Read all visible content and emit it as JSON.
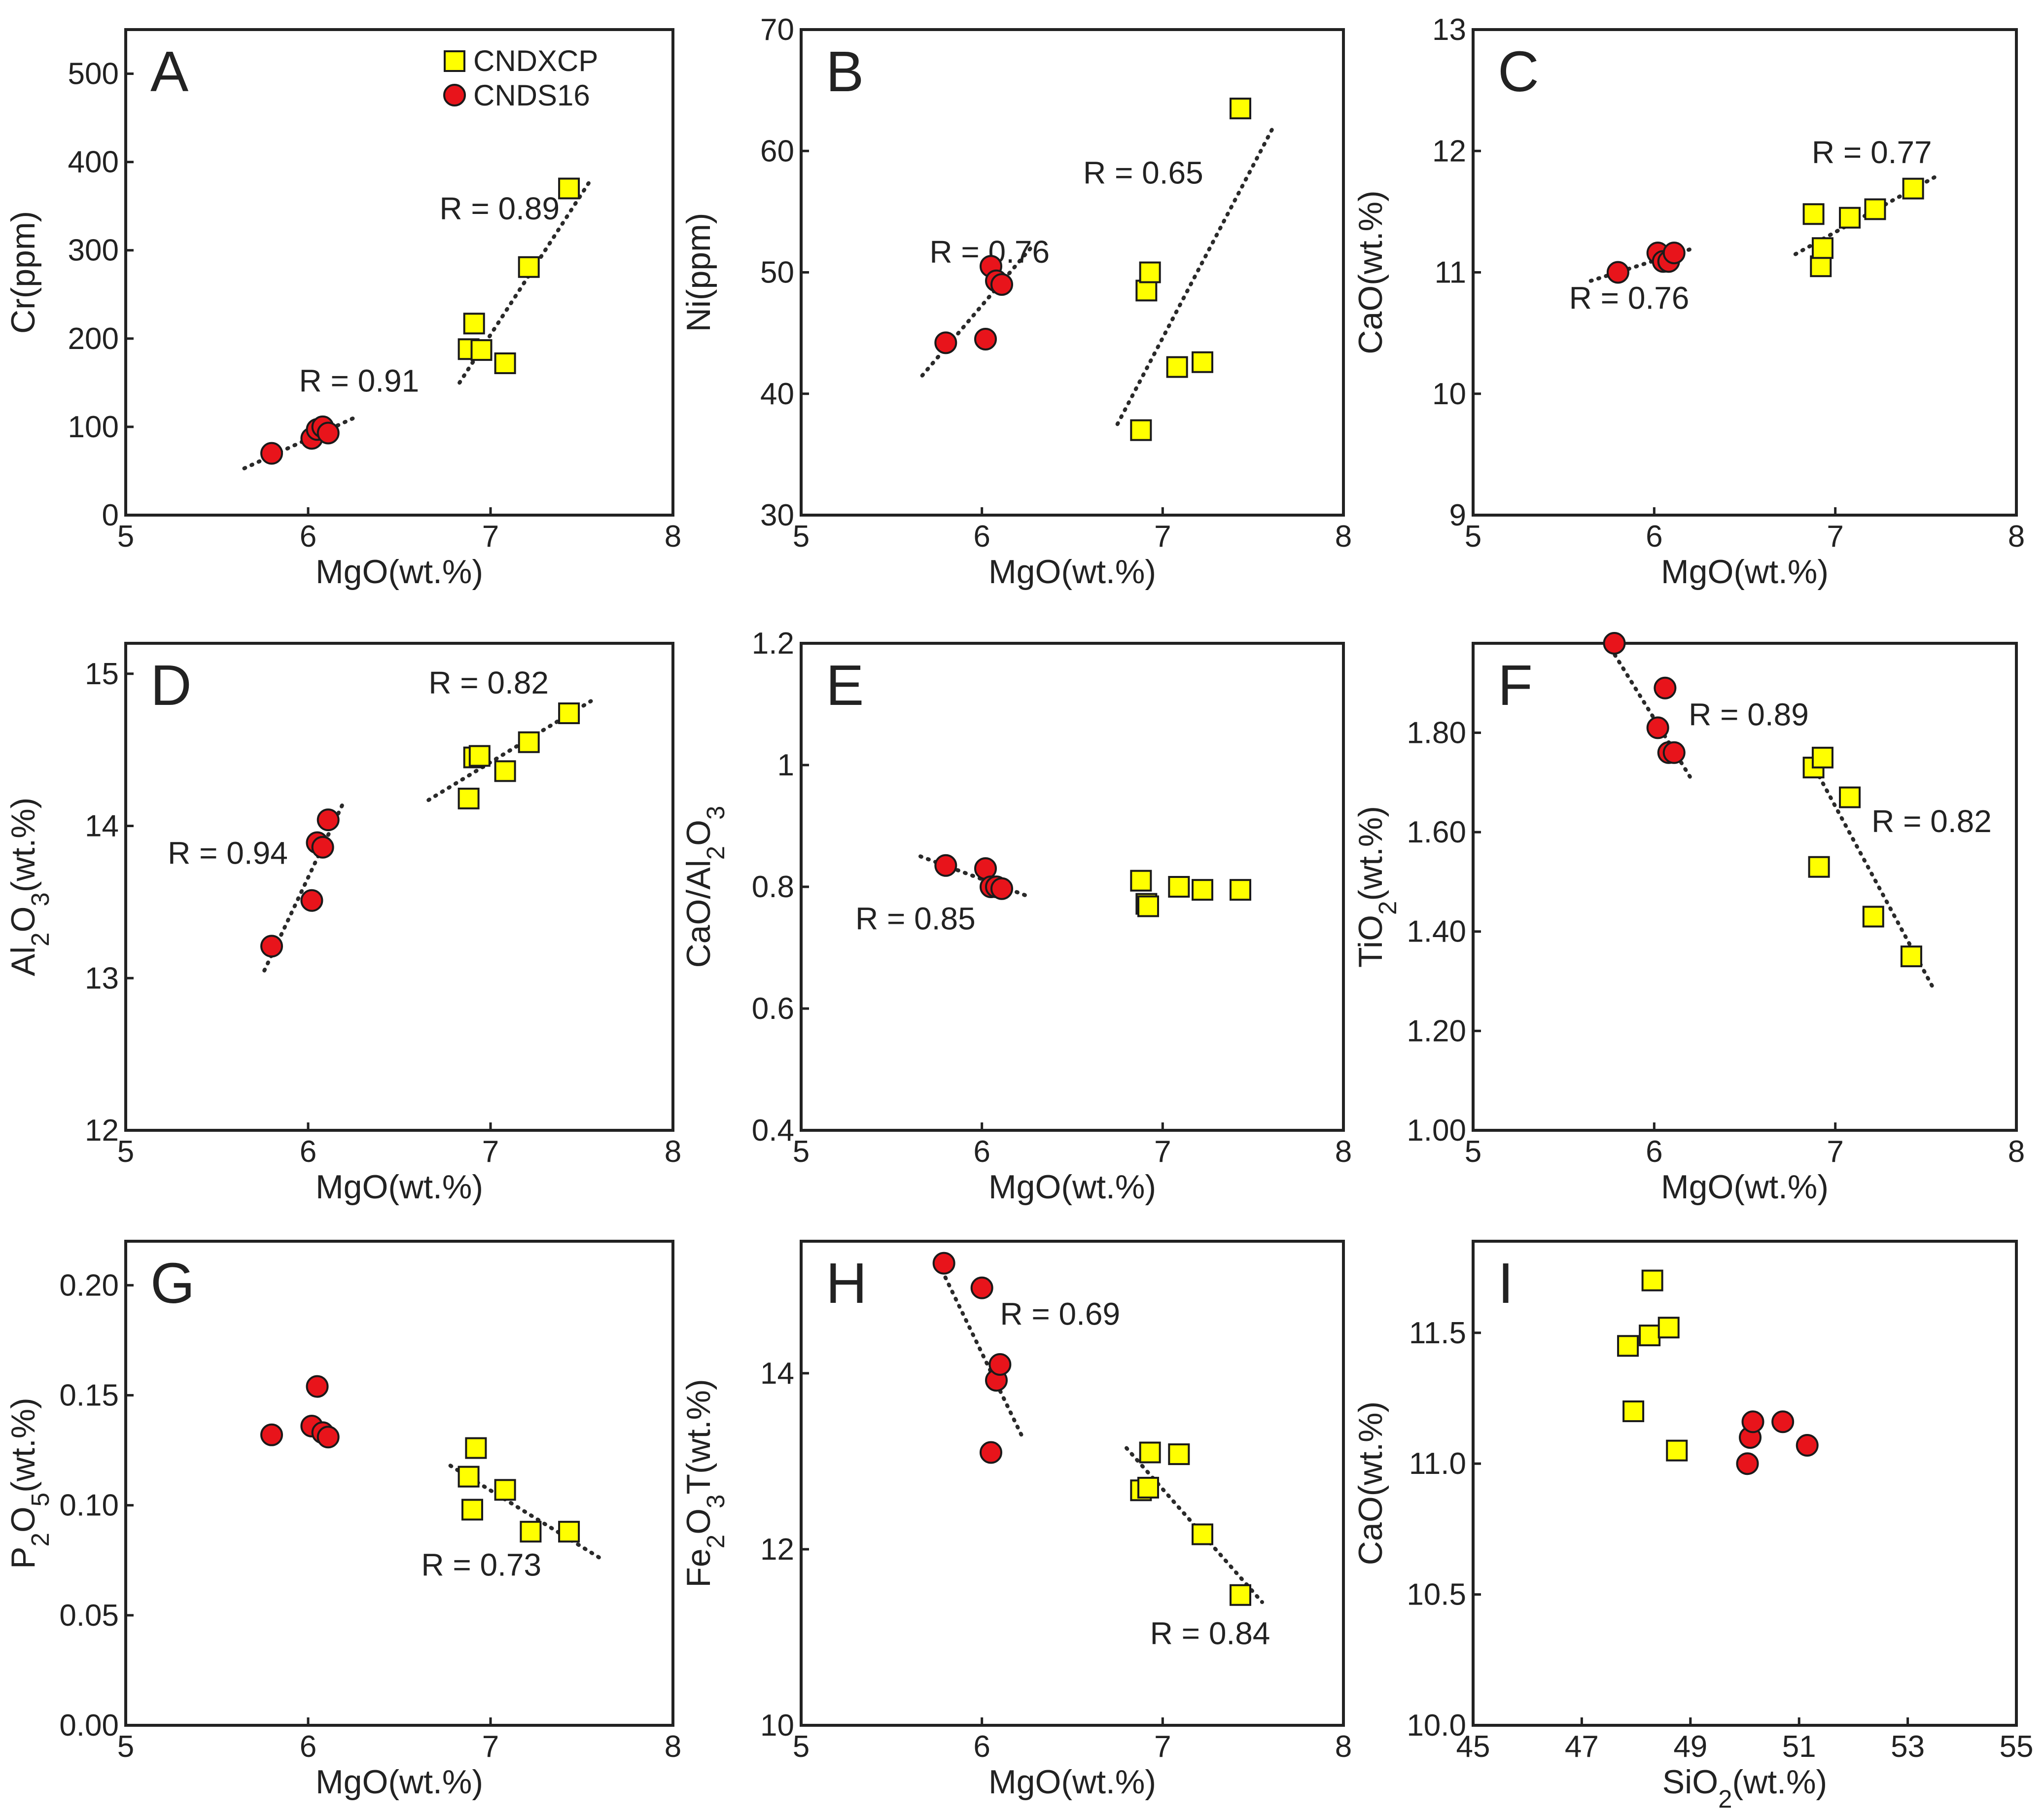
{
  "colors": {
    "yellow_marker": "#ffff00",
    "red_marker": "#e8141b",
    "axis": "#222222"
  },
  "legend": {
    "square_label": "CNDXCP",
    "circle_label": "CNDS16"
  },
  "chart_data": [
    {
      "panel": "A",
      "type": "scatter",
      "xlabel": "MgO(wt.%)",
      "ylabel": "Cr(ppm)",
      "xlim": [
        5,
        8
      ],
      "ylim": [
        0,
        550
      ],
      "xticks": [
        5,
        6,
        7,
        8
      ],
      "xtick_labels": [
        "5",
        "6",
        "7",
        "8"
      ],
      "yticks": [
        0,
        100,
        200,
        300,
        400,
        500
      ],
      "ytick_labels": [
        "0",
        "100",
        "200",
        "300",
        "400",
        "500"
      ],
      "series": [
        {
          "name": "CNDXCP",
          "marker": "square",
          "points": [
            [
              6.88,
              188
            ],
            [
              6.95,
              187
            ],
            [
              6.91,
              217
            ],
            [
              7.08,
              172
            ],
            [
              7.21,
              281
            ],
            [
              7.43,
              370
            ]
          ]
        },
        {
          "name": "CNDS16",
          "marker": "circle",
          "points": [
            [
              5.8,
              70
            ],
            [
              6.02,
              87
            ],
            [
              6.05,
              97
            ],
            [
              6.08,
              100
            ],
            [
              6.11,
              93
            ]
          ]
        }
      ],
      "trendlines": [
        {
          "from": [
            5.65,
            53
          ],
          "to": [
            6.25,
            110
          ],
          "label": "R = 0.91",
          "label_at": [
            5.95,
            140
          ]
        },
        {
          "from": [
            6.83,
            150
          ],
          "to": [
            7.55,
            380
          ],
          "label": "R = 0.89",
          "label_at": [
            6.72,
            335
          ]
        }
      ]
    },
    {
      "panel": "B",
      "type": "scatter",
      "xlabel": "MgO(wt.%)",
      "ylabel": "Ni(ppm)",
      "xlim": [
        5,
        8
      ],
      "ylim": [
        30,
        70
      ],
      "xticks": [
        5,
        6,
        7,
        8
      ],
      "xtick_labels": [
        "5",
        "6",
        "7",
        "8"
      ],
      "yticks": [
        30,
        40,
        50,
        60,
        70
      ],
      "ytick_labels": [
        "30",
        "40",
        "50",
        "60",
        "70"
      ],
      "series": [
        {
          "name": "CNDXCP",
          "marker": "square",
          "points": [
            [
              6.88,
              37
            ],
            [
              6.91,
              48.5
            ],
            [
              6.93,
              50
            ],
            [
              7.08,
              42.2
            ],
            [
              7.22,
              42.6
            ],
            [
              7.43,
              63.5
            ]
          ]
        },
        {
          "name": "CNDS16",
          "marker": "circle",
          "points": [
            [
              5.8,
              44.2
            ],
            [
              6.02,
              44.5
            ],
            [
              6.05,
              50.5
            ],
            [
              6.08,
              49.3
            ],
            [
              6.11,
              49
            ]
          ]
        }
      ],
      "trendlines": [
        {
          "from": [
            5.67,
            41.5
          ],
          "to": [
            6.27,
            52
          ],
          "label": "R = 0.76",
          "label_at": [
            5.71,
            50.8
          ]
        },
        {
          "from": [
            6.75,
            37.5
          ],
          "to": [
            7.62,
            62.2
          ],
          "label": "R = 0.65",
          "label_at": [
            6.56,
            57.3
          ]
        }
      ]
    },
    {
      "panel": "C",
      "type": "scatter",
      "xlabel": "MgO(wt.%)",
      "ylabel": "CaO(wt.%)",
      "xlim": [
        5,
        8
      ],
      "ylim": [
        9,
        13
      ],
      "xticks": [
        5,
        6,
        7,
        8
      ],
      "xtick_labels": [
        "5",
        "6",
        "7",
        "8"
      ],
      "yticks": [
        9,
        10,
        11,
        12,
        13
      ],
      "ytick_labels": [
        "9",
        "10",
        "11",
        "12",
        "13"
      ],
      "series": [
        {
          "name": "CNDXCP",
          "marker": "square",
          "points": [
            [
              6.88,
              11.48
            ],
            [
              6.92,
              11.05
            ],
            [
              6.93,
              11.2
            ],
            [
              7.08,
              11.45
            ],
            [
              7.22,
              11.52
            ],
            [
              7.43,
              11.69
            ]
          ]
        },
        {
          "name": "CNDS16",
          "marker": "circle",
          "points": [
            [
              5.8,
              11.0
            ],
            [
              6.02,
              11.16
            ],
            [
              6.05,
              11.09
            ],
            [
              6.08,
              11.09
            ],
            [
              6.11,
              11.16
            ]
          ]
        }
      ],
      "trendlines": [
        {
          "from": [
            5.65,
            10.93
          ],
          "to": [
            6.22,
            11.2
          ],
          "label": "R = 0.76",
          "label_at": [
            5.53,
            10.7
          ]
        },
        {
          "from": [
            6.78,
            11.15
          ],
          "to": [
            7.58,
            11.81
          ],
          "label": "R = 0.77",
          "label_at": [
            6.87,
            11.9
          ]
        }
      ]
    },
    {
      "panel": "D",
      "type": "scatter",
      "xlabel": "MgO(wt.%)",
      "ylabel": "Al2O3(wt.%)",
      "ylabel_sub": "2",
      "xlim": [
        5,
        8
      ],
      "ylim": [
        12,
        15.2
      ],
      "xticks": [
        5,
        6,
        7,
        8
      ],
      "xtick_labels": [
        "5",
        "6",
        "7",
        "8"
      ],
      "yticks": [
        12,
        13,
        14,
        15
      ],
      "ytick_labels": [
        "12",
        "13",
        "14",
        "15"
      ],
      "series": [
        {
          "name": "CNDXCP",
          "marker": "square",
          "points": [
            [
              6.88,
              14.18
            ],
            [
              6.91,
              14.45
            ],
            [
              6.94,
              14.46
            ],
            [
              7.08,
              14.36
            ],
            [
              7.21,
              14.55
            ],
            [
              7.43,
              14.74
            ]
          ]
        },
        {
          "name": "CNDS16",
          "marker": "circle",
          "points": [
            [
              5.8,
              13.21
            ],
            [
              6.02,
              13.51
            ],
            [
              6.05,
              13.89
            ],
            [
              6.08,
              13.86
            ],
            [
              6.11,
              14.04
            ]
          ]
        }
      ],
      "trendlines": [
        {
          "from": [
            5.76,
            13.05
          ],
          "to": [
            6.2,
            14.17
          ],
          "label": "R = 0.94",
          "label_at": [
            5.23,
            13.75
          ]
        },
        {
          "from": [
            6.66,
            14.17
          ],
          "to": [
            7.55,
            14.82
          ],
          "label": "R = 0.82",
          "label_at": [
            6.66,
            14.87
          ]
        }
      ]
    },
    {
      "panel": "E",
      "type": "scatter",
      "xlabel": "MgO(wt.%)",
      "ylabel": "CaO/Al2O3",
      "ylabel_sub": "2",
      "xlim": [
        5,
        8
      ],
      "ylim": [
        0.4,
        1.2
      ],
      "xticks": [
        5,
        6,
        7,
        8
      ],
      "xtick_labels": [
        "5",
        "6",
        "7",
        "8"
      ],
      "yticks": [
        0.4,
        0.6,
        0.8,
        1.0,
        1.2
      ],
      "ytick_labels": [
        "0.4",
        "0.6",
        "0.8",
        "1",
        "1.2"
      ],
      "series": [
        {
          "name": "CNDXCP",
          "marker": "square",
          "points": [
            [
              6.88,
              0.81
            ],
            [
              6.91,
              0.772
            ],
            [
              6.92,
              0.768
            ],
            [
              7.09,
              0.8
            ],
            [
              7.22,
              0.795
            ],
            [
              7.43,
              0.795
            ]
          ]
        },
        {
          "name": "CNDS16",
          "marker": "circle",
          "points": [
            [
              5.8,
              0.835
            ],
            [
              6.02,
              0.83
            ],
            [
              6.05,
              0.8
            ],
            [
              6.08,
              0.8
            ],
            [
              6.11,
              0.797
            ]
          ]
        }
      ],
      "trendlines": [
        {
          "from": [
            5.66,
            0.85
          ],
          "to": [
            6.25,
            0.785
          ],
          "label": "R = 0.85",
          "label_at": [
            5.3,
            0.73
          ]
        }
      ]
    },
    {
      "panel": "F",
      "type": "scatter",
      "xlabel": "MgO(wt.%)",
      "ylabel": "TiO2(wt.%)",
      "ylabel_sub": "2",
      "xlim": [
        5,
        8
      ],
      "ylim": [
        1.0,
        1.98
      ],
      "xticks": [
        5,
        6,
        7,
        8
      ],
      "xtick_labels": [
        "5",
        "6",
        "7",
        "8"
      ],
      "yticks": [
        1.0,
        1.2,
        1.4,
        1.6,
        1.8
      ],
      "ytick_labels": [
        "1.00",
        "1.20",
        "1.40",
        "1.60",
        "1.80"
      ],
      "series": [
        {
          "name": "CNDXCP",
          "marker": "square",
          "points": [
            [
              6.88,
              1.73
            ],
            [
              6.91,
              1.53
            ],
            [
              6.93,
              1.75
            ],
            [
              7.08,
              1.67
            ],
            [
              7.21,
              1.43
            ],
            [
              7.42,
              1.35
            ]
          ]
        },
        {
          "name": "CNDS16",
          "marker": "circle",
          "points": [
            [
              5.78,
              1.98
            ],
            [
              6.02,
              1.81
            ],
            [
              6.06,
              1.89
            ],
            [
              6.08,
              1.76
            ],
            [
              6.11,
              1.76
            ]
          ]
        }
      ],
      "trendlines": [
        {
          "from": [
            5.76,
            1.97
          ],
          "to": [
            6.2,
            1.71
          ],
          "label": "R = 0.89",
          "label_at": [
            6.19,
            1.815
          ]
        },
        {
          "from": [
            6.87,
            1.74
          ],
          "to": [
            7.55,
            1.28
          ],
          "label": "R = 0.82",
          "label_at": [
            7.2,
            1.6
          ]
        }
      ]
    },
    {
      "panel": "G",
      "type": "scatter",
      "xlabel": "MgO(wt.%)",
      "ylabel": "P2O5(wt.%)",
      "ylabel_sub": "2,5",
      "xlim": [
        5,
        8
      ],
      "ylim": [
        0,
        0.22
      ],
      "xticks": [
        5,
        6,
        7,
        8
      ],
      "xtick_labels": [
        "5",
        "6",
        "7",
        "8"
      ],
      "yticks": [
        0,
        0.05,
        0.1,
        0.15,
        0.2
      ],
      "ytick_labels": [
        "0.00",
        "0.05",
        "0.10",
        "0.15",
        "0.20"
      ],
      "series": [
        {
          "name": "CNDXCP",
          "marker": "square",
          "points": [
            [
              6.88,
              0.113
            ],
            [
              6.9,
              0.098
            ],
            [
              6.92,
              0.126
            ],
            [
              7.08,
              0.107
            ],
            [
              7.22,
              0.088
            ],
            [
              7.43,
              0.088
            ]
          ]
        },
        {
          "name": "CNDS16",
          "marker": "circle",
          "points": [
            [
              5.8,
              0.132
            ],
            [
              6.02,
              0.136
            ],
            [
              6.05,
              0.154
            ],
            [
              6.08,
              0.133
            ],
            [
              6.11,
              0.131
            ]
          ]
        }
      ],
      "trendlines": [
        {
          "from": [
            6.78,
            0.118
          ],
          "to": [
            7.62,
            0.075
          ],
          "label": "R = 0.73",
          "label_at": [
            6.62,
            0.068
          ]
        }
      ]
    },
    {
      "panel": "H",
      "type": "scatter",
      "xlabel": "MgO(wt.%)",
      "ylabel": "Fe2O3T(wt.%)",
      "ylabel_sub": "2,3",
      "xlim": [
        5,
        8
      ],
      "ylim": [
        10,
        15.5
      ],
      "xticks": [
        5,
        6,
        7,
        8
      ],
      "xtick_labels": [
        "5",
        "6",
        "7",
        "8"
      ],
      "yticks": [
        10,
        12,
        14
      ],
      "ytick_labels": [
        "10",
        "12",
        "14"
      ],
      "series": [
        {
          "name": "CNDXCP",
          "marker": "square",
          "points": [
            [
              6.88,
              12.67
            ],
            [
              6.92,
              12.7
            ],
            [
              6.93,
              13.1
            ],
            [
              7.09,
              13.08
            ],
            [
              7.22,
              12.17
            ],
            [
              7.43,
              11.48
            ]
          ]
        },
        {
          "name": "CNDS16",
          "marker": "circle",
          "points": [
            [
              5.79,
              15.25
            ],
            [
              6.0,
              14.97
            ],
            [
              6.05,
              13.1
            ],
            [
              6.08,
              13.92
            ],
            [
              6.1,
              14.1
            ]
          ]
        }
      ],
      "trendlines": [
        {
          "from": [
            5.76,
            15.25
          ],
          "to": [
            6.23,
            13.25
          ],
          "label": "R = 0.69",
          "label_at": [
            6.1,
            14.55
          ]
        },
        {
          "from": [
            6.8,
            13.15
          ],
          "to": [
            7.55,
            11.4
          ],
          "label": "R = 0.84",
          "label_at": [
            6.93,
            10.92
          ]
        }
      ]
    },
    {
      "panel": "I",
      "type": "scatter",
      "xlabel": "SiO2(wt.%)",
      "xlabel_sub": "2",
      "ylabel": "CaO(wt.%)",
      "xlim": [
        45,
        55
      ],
      "ylim": [
        10,
        11.85
      ],
      "xticks": [
        45,
        47,
        49,
        51,
        53,
        55
      ],
      "xtick_labels": [
        "45",
        "47",
        "49",
        "51",
        "53",
        "55"
      ],
      "yticks": [
        10,
        10.5,
        11,
        11.5
      ],
      "ytick_labels": [
        "10.0",
        "10.5",
        "11.0",
        "11.5"
      ],
      "series": [
        {
          "name": "CNDXCP",
          "marker": "square",
          "points": [
            [
              47.85,
              11.45
            ],
            [
              47.95,
              11.2
            ],
            [
              48.25,
              11.49
            ],
            [
              48.3,
              11.7
            ],
            [
              48.6,
              11.52
            ],
            [
              48.75,
              11.05
            ]
          ]
        },
        {
          "name": "CNDS16",
          "marker": "circle",
          "points": [
            [
              50.05,
              11.0
            ],
            [
              50.1,
              11.1
            ],
            [
              50.15,
              11.16
            ],
            [
              50.7,
              11.16
            ],
            [
              51.15,
              11.07
            ]
          ]
        }
      ],
      "trendlines": []
    }
  ]
}
